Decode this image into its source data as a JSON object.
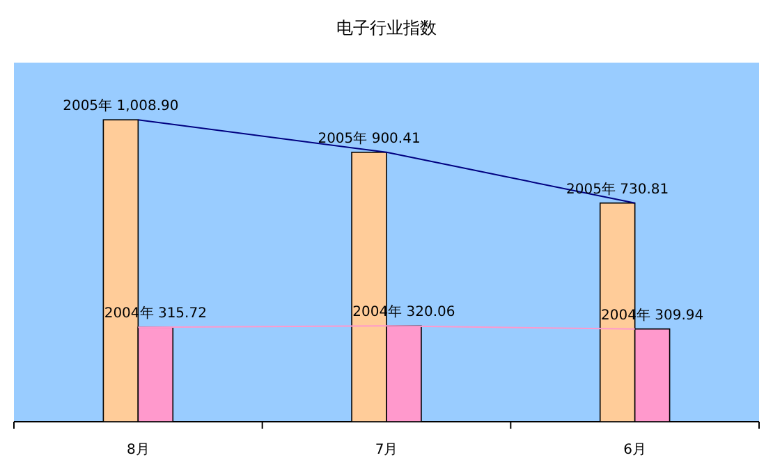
{
  "chart_data": {
    "type": "bar",
    "title": "电子行业指数",
    "categories": [
      "8月",
      "7月",
      "6月"
    ],
    "ylim": [
      0,
      1200
    ],
    "tick_labels": "x",
    "series": [
      {
        "color": "#ffcc99",
        "values": [
          1008.9,
          900.41,
          730.81
        ],
        "value_labels": [
          "2005年 1,008.90",
          "2005年 900.41",
          "2005年 730.81"
        ]
      },
      {
        "color": "#ff99cc",
        "values": [
          315.72,
          320.06,
          309.94
        ],
        "value_labels": [
          "2004年 315.72",
          "2004年 320.06",
          "2004年 309.94"
        ]
      },
      {
        "type": "line",
        "color": "#000080",
        "values": [
          1008.9,
          900.41,
          730.81
        ]
      },
      {
        "type": "line",
        "color": "#ff99cc",
        "values": [
          315.72,
          320.06,
          309.94
        ]
      }
    ]
  }
}
